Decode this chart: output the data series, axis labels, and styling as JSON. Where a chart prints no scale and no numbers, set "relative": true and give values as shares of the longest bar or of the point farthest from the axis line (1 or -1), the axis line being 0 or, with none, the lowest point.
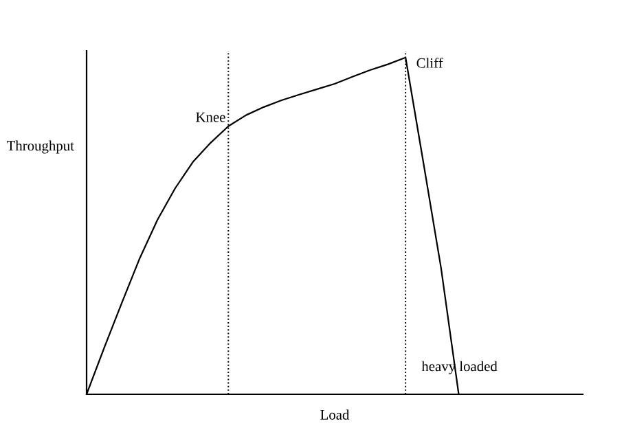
{
  "chart_data": {
    "type": "line",
    "relative": true,
    "xlabel": "Load",
    "ylabel": "Throughput",
    "categories": [
      null,
      null,
      null,
      null,
      null,
      null,
      null,
      null,
      null,
      null,
      null,
      null,
      null,
      null,
      null,
      null,
      null,
      null,
      null,
      null,
      null,
      null,
      null,
      null,
      null,
      null,
      null,
      null,
      null
    ],
    "series": [
      {
        "color": "#000000",
        "values": [
          0,
          0.139,
          0.273,
          0.404,
          0.518,
          0.612,
          0.69,
          0.747,
          0.796,
          0.829,
          0.853,
          0.873,
          0.89,
          0.906,
          0.922,
          0.943,
          0.963,
          0.98,
          1.0,
          0.69,
          0.376,
          0,
          null,
          null,
          null,
          null,
          null,
          null,
          null
        ]
      }
    ],
    "annotations": [
      "Knee",
      "Cliff",
      "heavy loaded"
    ],
    "legend": false,
    "marker": "none",
    "line_style": "solid"
  }
}
